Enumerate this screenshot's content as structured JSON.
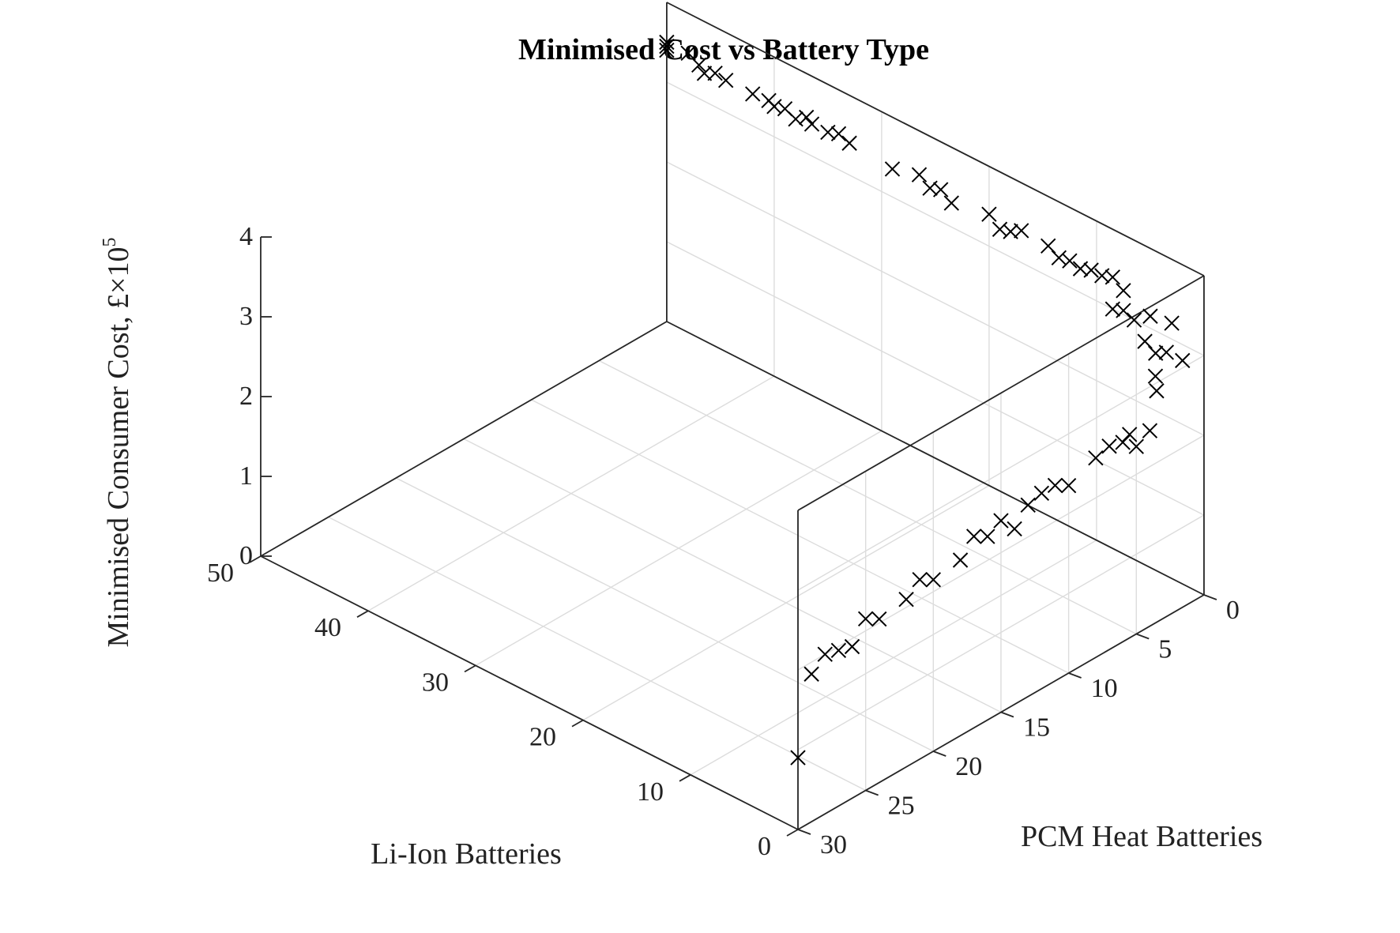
{
  "chart_data": {
    "type": "scatter",
    "title": "Minimised Cost vs Battery Type",
    "xlabel": "Li-Ion Batteries",
    "ylabel": "PCM Heat Batteries",
    "zlabel": "Minimised Consumer Cost, £",
    "z_multiplier": "×10",
    "z_multiplier_exponent": "5",
    "xlim": [
      0,
      50
    ],
    "ylim": [
      0,
      30
    ],
    "zlim": [
      0,
      4
    ],
    "x_ticks": [
      0,
      10,
      20,
      30,
      40,
      50
    ],
    "y_ticks": [
      0,
      5,
      10,
      15,
      20,
      25,
      30
    ],
    "z_ticks": [
      0,
      1,
      2,
      3,
      4
    ],
    "grid": true,
    "marker": "x",
    "series": [
      {
        "points": [
          [
            50,
            0,
            3.5
          ],
          [
            50,
            0,
            3.45
          ],
          [
            50,
            0,
            3.4
          ],
          [
            48,
            0,
            3.5
          ],
          [
            47,
            0,
            3.42
          ],
          [
            46.5,
            0,
            3.35
          ],
          [
            45.5,
            0,
            3.42
          ],
          [
            44.5,
            0,
            3.4
          ],
          [
            42,
            0,
            3.4
          ],
          [
            40.5,
            0,
            3.42
          ],
          [
            40,
            0,
            3.38
          ],
          [
            39,
            0,
            3.42
          ],
          [
            38,
            0,
            3.36
          ],
          [
            37,
            0,
            3.45
          ],
          [
            36.5,
            0,
            3.4
          ],
          [
            35,
            0,
            3.4
          ],
          [
            34,
            0,
            3.45
          ],
          [
            33,
            0,
            3.4
          ],
          [
            29,
            0,
            3.35
          ],
          [
            26.5,
            0,
            3.45
          ],
          [
            25.5,
            0,
            3.35
          ],
          [
            24.5,
            0,
            3.4
          ],
          [
            23.5,
            0,
            3.3
          ],
          [
            20,
            0,
            3.4
          ],
          [
            19,
            0,
            3.28
          ],
          [
            18,
            0,
            3.32
          ],
          [
            17,
            0,
            3.4
          ],
          [
            14.5,
            0,
            3.38
          ],
          [
            13.5,
            0,
            3.3
          ],
          [
            12.5,
            0,
            3.33
          ],
          [
            11.5,
            0,
            3.3
          ],
          [
            10.5,
            0,
            3.35
          ],
          [
            9.5,
            0,
            3.35
          ],
          [
            8.5,
            0,
            3.4
          ],
          [
            7.5,
            0,
            3.3
          ],
          [
            8.5,
            0,
            3.0
          ],
          [
            7.5,
            0,
            3.05
          ],
          [
            6.5,
            0,
            3.0
          ],
          [
            5,
            0,
            3.15
          ],
          [
            3,
            0,
            3.2
          ],
          [
            5.5,
            0,
            2.8
          ],
          [
            4.5,
            0,
            2.72
          ],
          [
            3.5,
            0,
            2.8
          ],
          [
            2,
            0,
            2.8
          ],
          [
            2,
            2,
            2.8
          ],
          [
            0,
            3.5,
            2.9
          ],
          [
            0,
            4,
            2.45
          ],
          [
            0,
            5,
            2.35
          ],
          [
            0,
            5.5,
            2.55
          ],
          [
            0,
            6,
            2.5
          ],
          [
            0,
            7,
            2.55
          ],
          [
            0,
            8,
            2.5
          ],
          [
            0,
            10,
            2.35
          ],
          [
            0,
            11,
            2.45
          ],
          [
            0,
            12,
            2.45
          ],
          [
            0,
            13,
            2.4
          ],
          [
            0,
            14,
            2.2
          ],
          [
            0,
            15,
            2.4
          ],
          [
            0,
            16,
            2.3
          ],
          [
            0,
            17,
            2.4
          ],
          [
            0,
            18,
            2.2
          ],
          [
            0,
            20,
            2.15
          ],
          [
            0,
            21,
            2.25
          ],
          [
            0,
            22,
            2.1
          ],
          [
            0,
            24,
            2.05
          ],
          [
            0,
            25,
            2.15
          ],
          [
            0,
            26,
            1.9
          ],
          [
            0,
            27,
            1.95
          ],
          [
            0,
            28,
            2.0
          ],
          [
            0,
            29,
            1.85
          ],
          [
            0,
            30,
            0.9
          ]
        ]
      }
    ]
  }
}
